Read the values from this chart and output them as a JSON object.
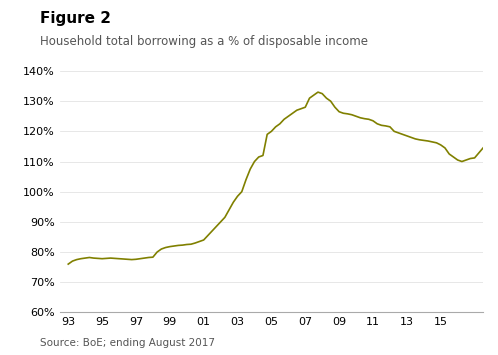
{
  "title": "Figure 2",
  "subtitle": "Household total borrowing as a % of disposable income",
  "source": "Source: BoE; ending August 2017",
  "line_color": "#808000",
  "background_color": "#ffffff",
  "ylim": [
    0.6,
    0.145
  ],
  "yticks": [
    0.6,
    0.7,
    0.8,
    0.9,
    1.0,
    1.1,
    1.2,
    1.3,
    1.4
  ],
  "xtick_labels": [
    "93",
    "95",
    "97",
    "99",
    "01",
    "03",
    "05",
    "07",
    "09",
    "11",
    "13",
    "15"
  ],
  "xtick_positions": [
    1993,
    1995,
    1997,
    1999,
    2001,
    2003,
    2005,
    2007,
    2009,
    2011,
    2013,
    2015
  ],
  "xlim": [
    1992.5,
    2017.5
  ],
  "data": {
    "x": [
      1993.0,
      1993.25,
      1993.5,
      1993.75,
      1994.0,
      1994.25,
      1994.5,
      1994.75,
      1995.0,
      1995.25,
      1995.5,
      1995.75,
      1996.0,
      1996.25,
      1996.5,
      1996.75,
      1997.0,
      1997.25,
      1997.5,
      1997.75,
      1998.0,
      1998.25,
      1998.5,
      1998.75,
      1999.0,
      1999.25,
      1999.5,
      1999.75,
      2000.0,
      2000.25,
      2000.5,
      2000.75,
      2001.0,
      2001.25,
      2001.5,
      2001.75,
      2002.0,
      2002.25,
      2002.5,
      2002.75,
      2003.0,
      2003.25,
      2003.5,
      2003.75,
      2004.0,
      2004.25,
      2004.5,
      2004.75,
      2005.0,
      2005.25,
      2005.5,
      2005.75,
      2006.0,
      2006.25,
      2006.5,
      2006.75,
      2007.0,
      2007.25,
      2007.5,
      2007.75,
      2008.0,
      2008.25,
      2008.5,
      2008.75,
      2009.0,
      2009.25,
      2009.5,
      2009.75,
      2010.0,
      2010.25,
      2010.5,
      2010.75,
      2011.0,
      2011.25,
      2011.5,
      2011.75,
      2012.0,
      2012.25,
      2012.5,
      2012.75,
      2013.0,
      2013.25,
      2013.5,
      2013.75,
      2014.0,
      2014.25,
      2014.5,
      2014.75,
      2015.0,
      2015.25,
      2015.5,
      2015.75,
      2016.0,
      2016.25,
      2016.5,
      2016.75,
      2017.0,
      2017.5
    ],
    "y": [
      0.76,
      0.77,
      0.775,
      0.778,
      0.78,
      0.782,
      0.78,
      0.779,
      0.778,
      0.779,
      0.78,
      0.779,
      0.778,
      0.777,
      0.776,
      0.775,
      0.776,
      0.778,
      0.78,
      0.782,
      0.783,
      0.8,
      0.81,
      0.815,
      0.818,
      0.82,
      0.822,
      0.823,
      0.825,
      0.826,
      0.83,
      0.835,
      0.84,
      0.855,
      0.87,
      0.885,
      0.9,
      0.915,
      0.94,
      0.965,
      0.985,
      1.0,
      1.04,
      1.075,
      1.1,
      1.115,
      1.12,
      1.19,
      1.2,
      1.215,
      1.225,
      1.24,
      1.25,
      1.26,
      1.27,
      1.275,
      1.28,
      1.31,
      1.32,
      1.33,
      1.325,
      1.31,
      1.3,
      1.28,
      1.265,
      1.26,
      1.258,
      1.255,
      1.25,
      1.245,
      1.242,
      1.24,
      1.235,
      1.225,
      1.22,
      1.218,
      1.215,
      1.2,
      1.195,
      1.19,
      1.185,
      1.18,
      1.175,
      1.172,
      1.17,
      1.168,
      1.165,
      1.162,
      1.155,
      1.145,
      1.125,
      1.115,
      1.105,
      1.1,
      1.105,
      1.11,
      1.112,
      1.145
    ]
  }
}
